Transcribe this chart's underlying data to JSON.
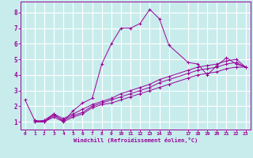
{
  "xlabel": "Windchill (Refroidissement éolien,°C)",
  "background_color": "#c8ecec",
  "line_color": "#990099",
  "grid_color": "#ffffff",
  "xlim": [
    -0.5,
    23.5
  ],
  "ylim": [
    0.5,
    8.7
  ],
  "xticks": [
    0,
    1,
    2,
    3,
    4,
    5,
    6,
    7,
    8,
    9,
    10,
    11,
    12,
    13,
    14,
    15,
    17,
    18,
    19,
    20,
    21,
    22,
    23
  ],
  "yticks": [
    1,
    2,
    3,
    4,
    5,
    6,
    7,
    8
  ],
  "lines": [
    {
      "x": [
        0,
        1,
        2,
        3,
        4,
        5,
        6,
        7,
        8,
        9,
        10,
        11,
        12,
        13,
        14,
        15,
        17,
        18,
        19,
        20,
        21,
        22,
        23
      ],
      "y": [
        2.4,
        1.1,
        1.0,
        1.5,
        1.0,
        1.7,
        2.2,
        2.5,
        4.7,
        6.0,
        7.0,
        7.0,
        7.3,
        8.2,
        7.6,
        5.9,
        4.8,
        4.7,
        4.0,
        4.6,
        5.1,
        4.7,
        4.5
      ]
    },
    {
      "x": [
        1,
        2,
        3,
        4,
        5,
        6,
        7,
        8,
        9,
        10,
        11,
        12,
        13,
        14,
        15,
        17,
        18,
        19,
        20,
        21,
        22,
        23
      ],
      "y": [
        1.0,
        1.0,
        1.3,
        1.0,
        1.3,
        1.5,
        1.9,
        2.1,
        2.2,
        2.4,
        2.6,
        2.8,
        3.0,
        3.2,
        3.4,
        3.8,
        4.0,
        4.1,
        4.2,
        4.4,
        4.5,
        4.5
      ]
    },
    {
      "x": [
        1,
        2,
        3,
        4,
        5,
        6,
        7,
        8,
        9,
        10,
        11,
        12,
        13,
        14,
        15,
        17,
        18,
        19,
        20,
        21,
        22,
        23
      ],
      "y": [
        1.0,
        1.0,
        1.4,
        1.1,
        1.4,
        1.6,
        2.0,
        2.2,
        2.4,
        2.6,
        2.8,
        3.0,
        3.2,
        3.5,
        3.7,
        4.1,
        4.3,
        4.4,
        4.5,
        4.7,
        4.8,
        4.5
      ]
    },
    {
      "x": [
        1,
        2,
        3,
        4,
        5,
        6,
        7,
        8,
        9,
        10,
        11,
        12,
        13,
        14,
        15,
        17,
        18,
        19,
        20,
        21,
        22,
        23
      ],
      "y": [
        1.0,
        1.1,
        1.5,
        1.2,
        1.5,
        1.8,
        2.1,
        2.3,
        2.5,
        2.8,
        3.0,
        3.2,
        3.4,
        3.7,
        3.9,
        4.3,
        4.5,
        4.6,
        4.7,
        4.9,
        5.0,
        4.5
      ]
    }
  ]
}
